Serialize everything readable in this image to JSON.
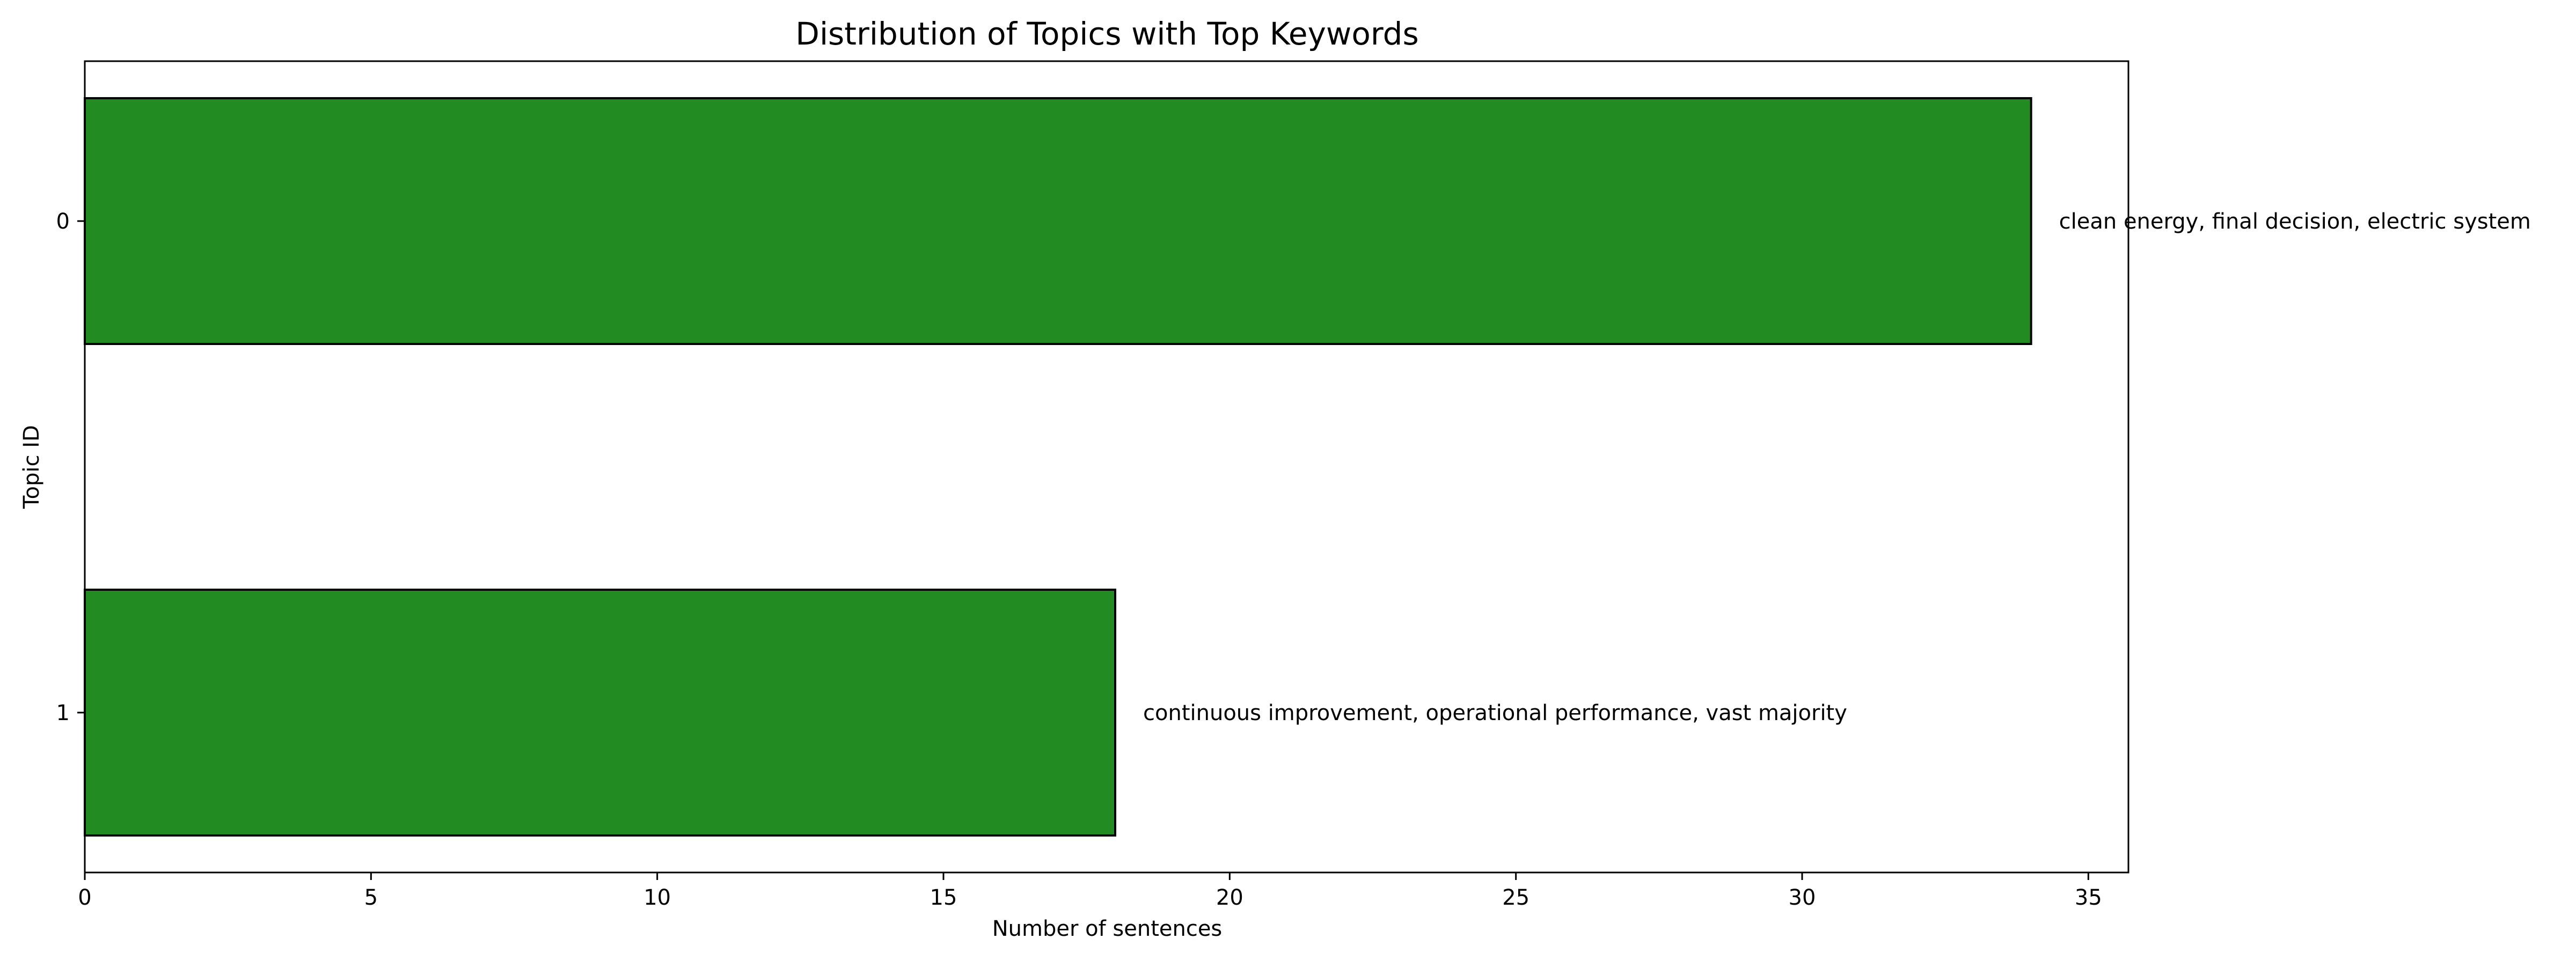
{
  "chart_data": {
    "type": "bar",
    "orientation": "horizontal",
    "title": "Distribution of Topics with Top Keywords",
    "xlabel": "Number of sentences",
    "ylabel": "Topic ID",
    "categories": [
      "0",
      "1"
    ],
    "values": [
      34,
      18
    ],
    "bar_labels": [
      "clean energy, final decision, electric system",
      "continuous improvement, operational performance, vast majority"
    ],
    "xlim": [
      0,
      35.7
    ],
    "xticks": [
      "0",
      "5",
      "10",
      "15",
      "20",
      "25",
      "30",
      "35"
    ],
    "grid": false,
    "legend": "none",
    "bar_color": "#228b22",
    "bar_edge_color": "#000000"
  }
}
